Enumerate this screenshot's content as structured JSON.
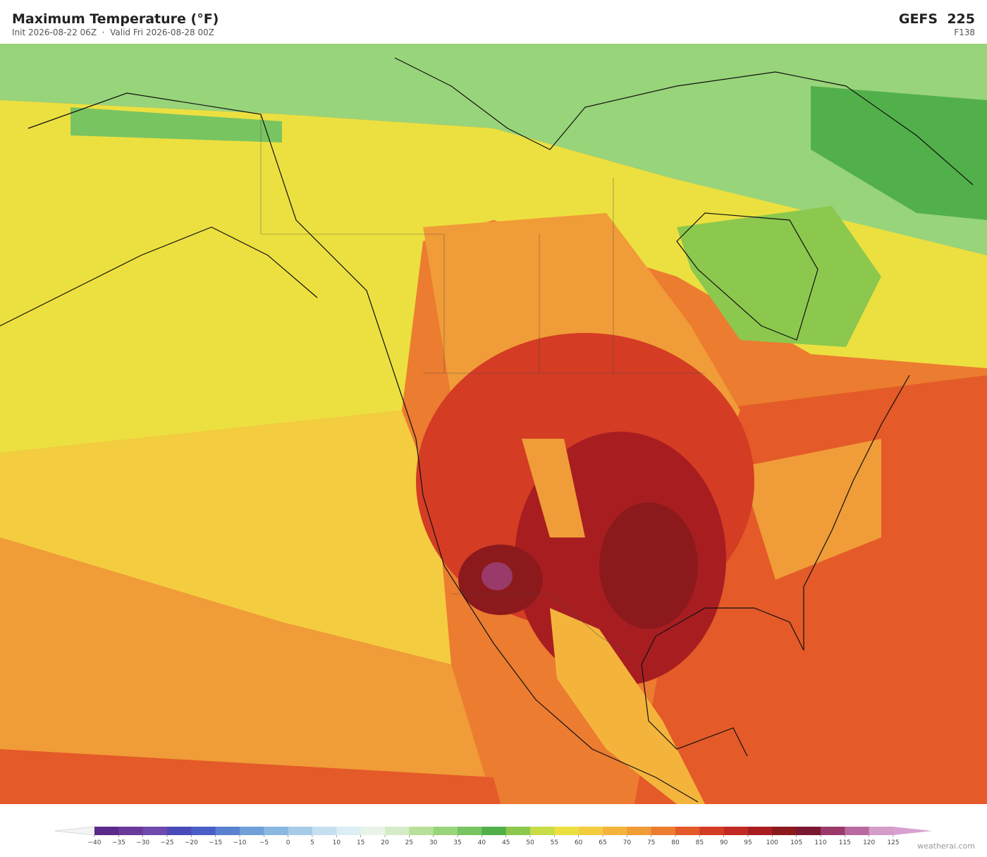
{
  "header": {
    "title": "Maximum Temperature  (°F)",
    "subtitle": "Init 2026-08-22 06Z  ·  Valid Fri 2026-08-28 00Z",
    "model": "GEFS  225",
    "forecast_hour": "F138"
  },
  "colorbar": {
    "ticks": [
      {
        "value": -40,
        "label": "−40"
      },
      {
        "value": -35,
        "label": "−35"
      },
      {
        "value": -30,
        "label": "−30"
      },
      {
        "value": -25,
        "label": "−25"
      },
      {
        "value": -20,
        "label": "−20"
      },
      {
        "value": -15,
        "label": "−15"
      },
      {
        "value": -10,
        "label": "−10"
      },
      {
        "value": -5,
        "label": "−5"
      },
      0,
      5,
      10,
      15,
      20,
      25,
      30,
      35,
      40,
      45,
      50,
      55,
      60,
      65,
      70,
      75,
      80,
      85,
      90,
      95,
      100,
      105,
      110,
      115,
      120,
      125
    ],
    "colors": [
      "#5a2a8a",
      "#6a3a9a",
      "#6e4aae",
      "#4a4ab8",
      "#4a5ec8",
      "#5a80d0",
      "#70a0d8",
      "#8ab8e0",
      "#a6cce8",
      "#c4e0f0",
      "#dceef4",
      "#e8f4e8",
      "#d4ecc8",
      "#b8e09a",
      "#98d47a",
      "#78c460",
      "#52b04a",
      "#8cc84e",
      "#c8dc48",
      "#ece040",
      "#f4cc40",
      "#f4b43c",
      "#f09c38",
      "#ec7c30",
      "#e45a28",
      "#d43c24",
      "#c02a22",
      "#a81e20",
      "#8c1a1c",
      "#7a1830",
      "#9a3a6a",
      "#b86aa0",
      "#d49cc8"
    ],
    "under_color": "#f4f4f4",
    "over_color": "#d8a0d0"
  },
  "credit": "weatherai.com"
}
